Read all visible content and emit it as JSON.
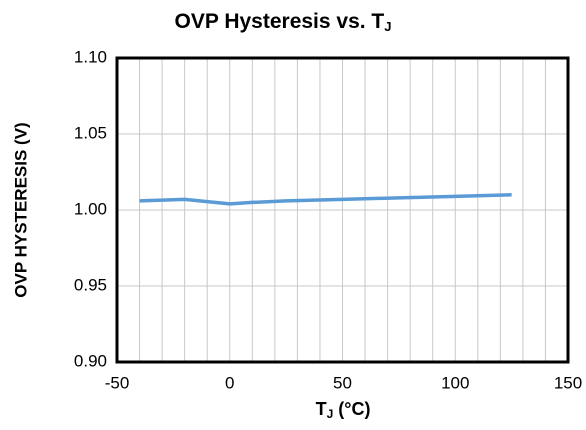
{
  "chart_data": {
    "type": "line",
    "title": {
      "text": "OVP Hysteresis vs. T",
      "sub": "J"
    },
    "xlabel": {
      "text": "T",
      "sub": "J",
      "rest": " (°C)"
    },
    "ylabel": "OVP HYSTERESIS (V)",
    "x": [
      -40,
      -20,
      0,
      10,
      25,
      50,
      75,
      100,
      125
    ],
    "series": [
      {
        "name": "OVP Hysteresis",
        "color": "#5b9bd5",
        "values": [
          1.006,
          1.007,
          1.004,
          1.005,
          1.006,
          1.007,
          1.008,
          1.009,
          1.01
        ]
      }
    ],
    "xlim": [
      -50,
      150
    ],
    "xticks": [
      -50,
      0,
      50,
      100,
      150
    ],
    "x_grid": [
      -40,
      -30,
      -20,
      -10,
      0,
      10,
      20,
      30,
      40,
      50,
      60,
      70,
      80,
      90,
      100,
      110,
      120,
      130,
      140
    ],
    "ylim": [
      0.9,
      1.1
    ],
    "yticks": [
      {
        "value": 0.9,
        "label": "0.90"
      },
      {
        "value": 0.95,
        "label": "0.95"
      },
      {
        "value": 1.0,
        "label": "1.00"
      },
      {
        "value": 1.05,
        "label": "1.05"
      },
      {
        "value": 1.1,
        "label": "1.10"
      }
    ],
    "grid": true
  }
}
